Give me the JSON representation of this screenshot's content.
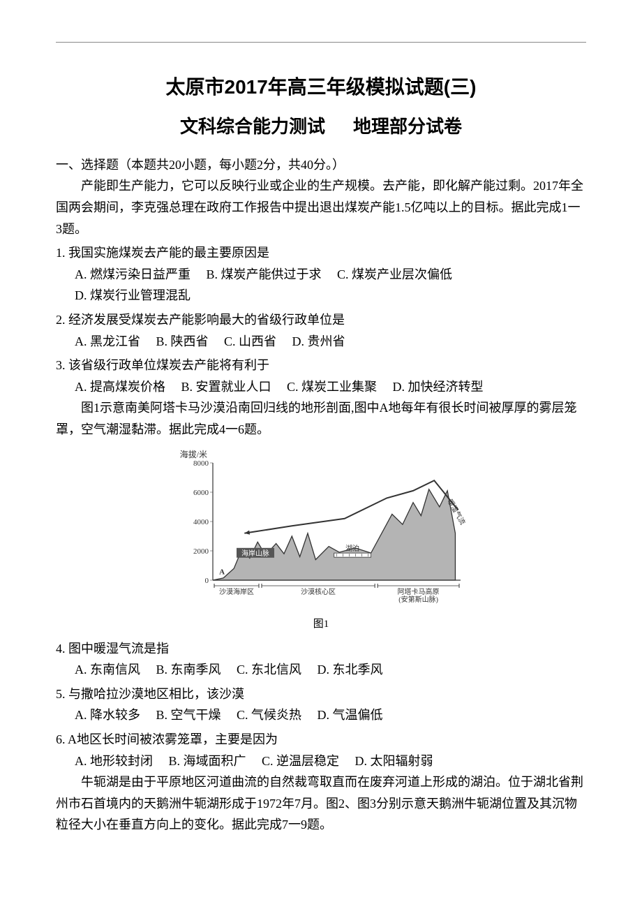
{
  "header": {
    "title1": "太原市2017年高三年级模拟试题(三)",
    "title2a": "文科综合能力测试",
    "title2b": "地理部分试卷"
  },
  "section1": {
    "heading": "一、选择题（本题共20小题，每小题2分，共40分。）",
    "passage1": "产能即生产能力，它可以反映行业或企业的生产规模。去产能，即化解产能过剩。2017年全国两会期间，李克强总理在政府工作报告中提出退出煤炭产能1.5亿吨以上的目标。据此完成1一3题。",
    "q1": {
      "stem": "1. 我国实施煤炭去产能的最主要原因是",
      "A": "A. 燃煤污染日益严重",
      "B": "B. 煤炭产能供过于求",
      "C": "C. 煤炭产业层次偏低",
      "D": "D. 煤炭行业管理混乱"
    },
    "q2": {
      "stem": "2. 经济发展受煤炭去产能影响最大的省级行政单位是",
      "A": "A. 黑龙江省",
      "B": "B. 陕西省",
      "C": "C. 山西省",
      "D": "D. 贵州省"
    },
    "q3": {
      "stem": "3. 该省级行政单位煤炭去产能将有利于",
      "A": "A. 提高煤炭价格",
      "B": "B. 安置就业人口",
      "C": "C. 煤炭工业集聚",
      "D": "D. 加快经济转型"
    },
    "passage2": "图1示意南美阿塔卡马沙漠沿南回归线的地形剖面,图中A地每年有很长时间被厚厚的雾层笼罩，空气潮湿黏滞。据此完成4一6题。",
    "figure1": {
      "yaxis_label": "海拔/米",
      "ylim": [
        0,
        8000
      ],
      "yticks": [
        0,
        2000,
        4000,
        6000,
        8000
      ],
      "zones": [
        "沙漠海岸区",
        "沙漠核心区",
        "阿塔卡马高原\n(安第斯山脉)"
      ],
      "labels": {
        "coastal_range": "海岸山脉",
        "lake": "湖泊",
        "warm_moist": "暖湿气流"
      },
      "caption": "图1",
      "line_color": "#333333",
      "fill_color": "#777777",
      "arrow_color": "#333333",
      "grid_color": "#999999",
      "bg_color": "#ffffff",
      "profile_points": [
        [
          0,
          0
        ],
        [
          20,
          150
        ],
        [
          40,
          800
        ],
        [
          55,
          2100
        ],
        [
          70,
          1500
        ],
        [
          85,
          2600
        ],
        [
          100,
          1700
        ],
        [
          120,
          2500
        ],
        [
          135,
          1800
        ],
        [
          150,
          3000
        ],
        [
          165,
          1600
        ],
        [
          180,
          3200
        ],
        [
          195,
          1400
        ],
        [
          220,
          2300
        ],
        [
          240,
          1900
        ],
        [
          270,
          2200
        ],
        [
          300,
          1850
        ],
        [
          340,
          4500
        ],
        [
          360,
          3800
        ],
        [
          380,
          5300
        ],
        [
          395,
          4400
        ],
        [
          410,
          6200
        ],
        [
          430,
          5000
        ],
        [
          445,
          6100
        ],
        [
          460,
          3200
        ]
      ],
      "arrow_path": [
        [
          465,
          4800
        ],
        [
          420,
          6800
        ],
        [
          380,
          6100
        ],
        [
          330,
          5600
        ],
        [
          250,
          4200
        ],
        [
          150,
          3700
        ],
        [
          60,
          3200
        ]
      ]
    },
    "q4": {
      "stem": "4. 图中暖湿气流是指",
      "A": "A. 东南信风",
      "B": "B. 东南季风",
      "C": "C. 东北信风",
      "D": "D. 东北季风"
    },
    "q5": {
      "stem": "5. 与撒哈拉沙漠地区相比，该沙漠",
      "A": "A. 降水较多",
      "B": "B. 空气干燥",
      "C": "C. 气候炎热",
      "D": "D. 气温偏低"
    },
    "q6": {
      "stem": "6. A地区长时间被浓雾笼罩，主要是因为",
      "A": "A. 地形较封闭",
      "B": "B. 海域面积广",
      "C": "C. 逆温层稳定",
      "D": "D. 太阳辐射弱"
    },
    "passage3": "牛轭湖是由于平原地区河道曲流的自然裁弯取直而在废弃河道上形成的湖泊。位于湖北省荆州市石首境内的天鹅洲牛轭湖形成于1972年7月。图2、图3分别示意天鹅洲牛轭湖位置及其沉物粒径大小在垂直方向上的变化。据此完成7一9题。"
  }
}
